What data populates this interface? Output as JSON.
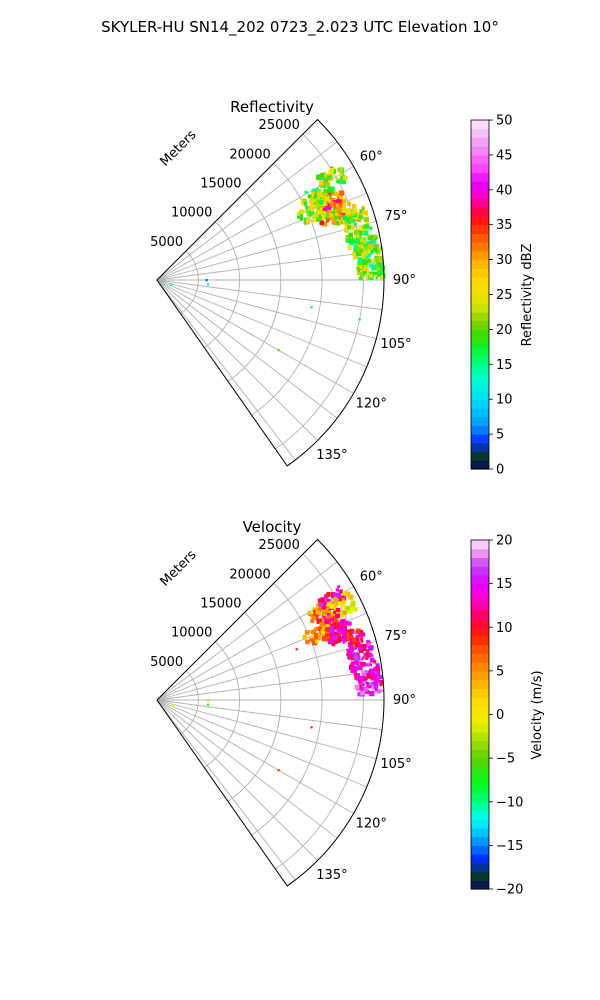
{
  "suptitle": "SKYLER-HU  SN14_202  0723_2.023 UTC Elevation 10°",
  "colors": {
    "grid": "#b0b0b0",
    "axes": "#000000"
  },
  "chart_data": [
    {
      "type": "heatmap",
      "projection": "polar-sector",
      "title": "Reflectivity",
      "radial_label": "Meters",
      "radial_ticks": [
        5000,
        10000,
        15000,
        20000,
        25000
      ],
      "radial_range": [
        0,
        27500
      ],
      "theta_range_deg": [
        45,
        145
      ],
      "theta_ticks": [
        "60°",
        "75°",
        "90°",
        "105°",
        "120°",
        "135°"
      ],
      "theta_tick_values": [
        60,
        75,
        90,
        105,
        120,
        135
      ],
      "colorbar": {
        "label": "Reflectivity dBZ",
        "range": [
          0,
          50
        ],
        "ticks": [
          "0",
          "5",
          "10",
          "15",
          "20",
          "25",
          "30",
          "35",
          "40",
          "45",
          "50"
        ],
        "tick_values": [
          0,
          5,
          10,
          15,
          20,
          25,
          30,
          35,
          40,
          45,
          50
        ],
        "stops": [
          [
            0,
            "#0a0a5a"
          ],
          [
            2,
            "#063a2e"
          ],
          [
            4,
            "#0030ff"
          ],
          [
            6,
            "#0090ff"
          ],
          [
            9,
            "#00d0ff"
          ],
          [
            13,
            "#00ffd0"
          ],
          [
            16,
            "#00ff60"
          ],
          [
            19,
            "#30e000"
          ],
          [
            21,
            "#80d000"
          ],
          [
            23,
            "#c8e000"
          ],
          [
            26,
            "#ffe000"
          ],
          [
            29,
            "#ffc000"
          ],
          [
            31,
            "#ff9000"
          ],
          [
            33,
            "#ff6000"
          ],
          [
            35,
            "#ff2000"
          ],
          [
            37,
            "#ff0050"
          ],
          [
            39,
            "#ff00c0"
          ],
          [
            41,
            "#e000ff"
          ],
          [
            43,
            "#ff40ff"
          ],
          [
            46,
            "#f090f0"
          ],
          [
            50,
            "#ffe8ff"
          ]
        ]
      },
      "echo_regions": [
        {
          "az": 62,
          "range_m": 22500,
          "value": 20
        },
        {
          "az": 60,
          "range_m": 24500,
          "value": 21
        },
        {
          "az": 66,
          "range_m": 23500,
          "value": 28
        },
        {
          "az": 64,
          "range_m": 21500,
          "value": 23
        },
        {
          "az": 69,
          "range_m": 22500,
          "value": 34
        },
        {
          "az": 67,
          "range_m": 20500,
          "value": 22
        },
        {
          "az": 71,
          "range_m": 24000,
          "value": 25
        },
        {
          "az": 73,
          "range_m": 25000,
          "value": 22
        },
        {
          "az": 78,
          "range_m": 25200,
          "value": 20
        },
        {
          "az": 81,
          "range_m": 25500,
          "value": 19
        },
        {
          "az": 84,
          "range_m": 25800,
          "value": 19
        },
        {
          "az": 87,
          "range_m": 26000,
          "value": 21
        }
      ],
      "speckles": [
        {
          "az": 90,
          "range_m": 6000,
          "value": 5
        },
        {
          "az": 95,
          "range_m": 6200,
          "value": 12
        },
        {
          "az": 107,
          "range_m": 1800,
          "value": 14
        },
        {
          "az": 100,
          "range_m": 19000,
          "value": 17
        },
        {
          "az": 120,
          "range_m": 17000,
          "value": 20
        },
        {
          "az": 101,
          "range_m": 25000,
          "value": 17
        }
      ]
    },
    {
      "type": "heatmap",
      "projection": "polar-sector",
      "title": "Velocity",
      "radial_label": "Meters",
      "radial_ticks": [
        5000,
        10000,
        15000,
        20000,
        25000
      ],
      "radial_range": [
        0,
        27500
      ],
      "theta_range_deg": [
        45,
        145
      ],
      "theta_ticks": [
        "60°",
        "75°",
        "90°",
        "105°",
        "120°",
        "135°"
      ],
      "theta_tick_values": [
        60,
        75,
        90,
        105,
        120,
        135
      ],
      "colorbar": {
        "label": "Velocity (m/s)",
        "range": [
          -20,
          20
        ],
        "ticks": [
          "−20",
          "−15",
          "−10",
          "−5",
          "0",
          "5",
          "10",
          "15",
          "20"
        ],
        "tick_values": [
          -20,
          -15,
          -10,
          -5,
          0,
          5,
          10,
          15,
          20
        ],
        "stops": [
          [
            -20,
            "#0a0a5a"
          ],
          [
            -18.5,
            "#063a2e"
          ],
          [
            -16.5,
            "#0030ff"
          ],
          [
            -14,
            "#00b0ff"
          ],
          [
            -12,
            "#00ffff"
          ],
          [
            -10,
            "#00ff80"
          ],
          [
            -8,
            "#00ff20"
          ],
          [
            -5,
            "#60d000"
          ],
          [
            -3,
            "#a0e000"
          ],
          [
            -1,
            "#e8f000"
          ],
          [
            1,
            "#ffe000"
          ],
          [
            3,
            "#ffc000"
          ],
          [
            5,
            "#ff9000"
          ],
          [
            7,
            "#ff6000"
          ],
          [
            9,
            "#ff2000"
          ],
          [
            11,
            "#ff0050"
          ],
          [
            13,
            "#ff00c0"
          ],
          [
            15,
            "#e000ff"
          ],
          [
            17,
            "#c040ff"
          ],
          [
            18.5,
            "#f090f0"
          ],
          [
            20,
            "#ffe8ff"
          ]
        ]
      },
      "echo_regions": [
        {
          "az": 62,
          "range_m": 22500,
          "value": 6
        },
        {
          "az": 60,
          "range_m": 24500,
          "value": 13
        },
        {
          "az": 63,
          "range_m": 25000,
          "value": 1
        },
        {
          "az": 66,
          "range_m": 23000,
          "value": 10
        },
        {
          "az": 68,
          "range_m": 21000,
          "value": 4
        },
        {
          "az": 70,
          "range_m": 23500,
          "value": 12
        },
        {
          "az": 73,
          "range_m": 25000,
          "value": 11
        },
        {
          "az": 78,
          "range_m": 25200,
          "value": 14
        },
        {
          "az": 82,
          "range_m": 25500,
          "value": 15
        },
        {
          "az": 86,
          "range_m": 25800,
          "value": 15
        }
      ],
      "speckles": [
        {
          "az": 90,
          "range_m": 6200,
          "value": -2
        },
        {
          "az": 95,
          "range_m": 6200,
          "value": -6
        },
        {
          "az": 107,
          "range_m": 2000,
          "value": -1
        },
        {
          "az": 100,
          "range_m": 19000,
          "value": 9
        },
        {
          "az": 120,
          "range_m": 17000,
          "value": 8
        },
        {
          "az": 70,
          "range_m": 18000,
          "value": 9
        }
      ]
    }
  ]
}
